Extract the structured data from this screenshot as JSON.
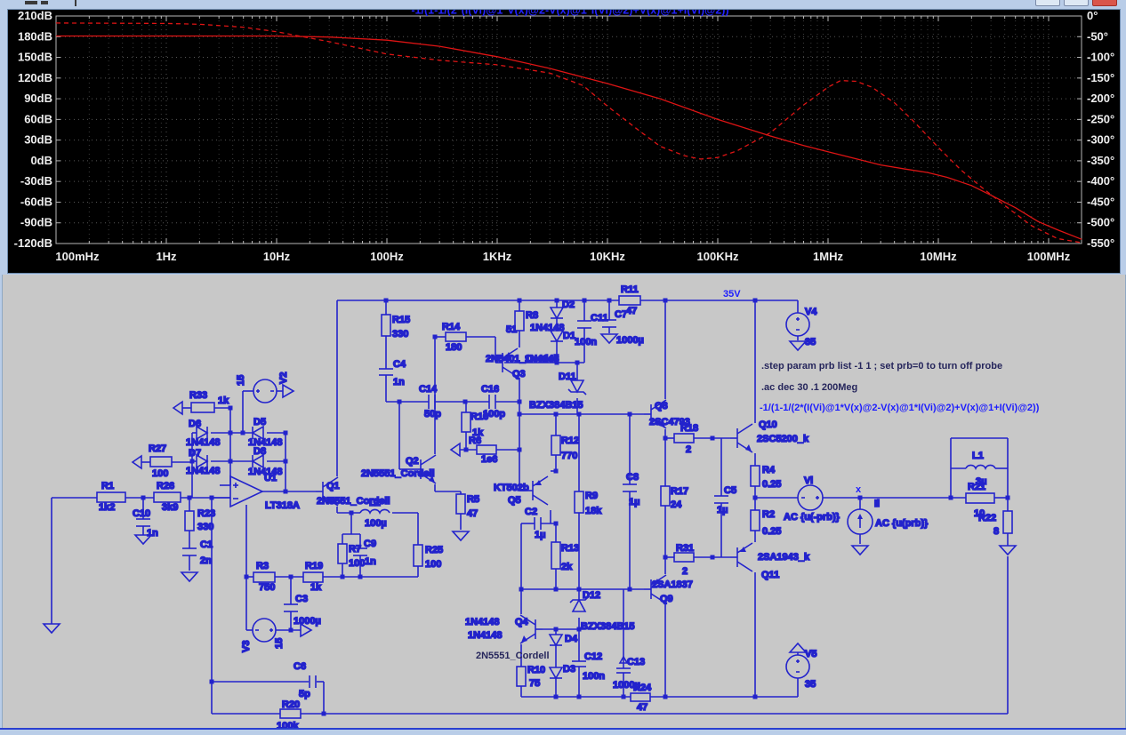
{
  "window": {
    "buttons": [
      {
        "id": "minimize",
        "label": ""
      },
      {
        "id": "maximize",
        "label": ""
      },
      {
        "id": "close",
        "label": ""
      }
    ]
  },
  "plot": {
    "title": "-1/(1-1/(2*(I(Vi)@1*V(x)@2-V(x)@1*I(Vi)@2)+V(x)@1+I(Vi)@2))",
    "left_ticks": [
      "210dB",
      "180dB",
      "150dB",
      "120dB",
      "90dB",
      "60dB",
      "30dB",
      "0dB",
      "-30dB",
      "-60dB",
      "-90dB",
      "-120dB"
    ],
    "right_ticks": [
      "0°",
      "-50°",
      "-100°",
      "-150°",
      "-200°",
      "-250°",
      "-300°",
      "-350°",
      "-400°",
      "-450°",
      "-500°",
      "-550°"
    ],
    "freq_ticks": [
      "100mHz",
      "1Hz",
      "10Hz",
      "100Hz",
      "1KHz",
      "10KHz",
      "100KHz",
      "1MHz",
      "10MHz",
      "100MHz"
    ],
    "curve_color": "#dd1414",
    "grid_color": "#565656",
    "background": "#000000"
  },
  "chart_data": {
    "type": "line",
    "title": "-1/(1-1/(2*(I(Vi)@1*V(x)@2-V(x)@1*I(Vi)@2)+V(x)@1+I(Vi)@2))",
    "x_axis": {
      "scale": "log",
      "range_hz": [
        0.1,
        200000000
      ],
      "tick_labels": [
        "100mHz",
        "1Hz",
        "10Hz",
        "100Hz",
        "1KHz",
        "10KHz",
        "100KHz",
        "1MHz",
        "10MHz",
        "100MHz"
      ]
    },
    "y_left": {
      "unit": "dB",
      "range": [
        -120,
        210
      ],
      "step": 30
    },
    "y_right": {
      "unit": "deg",
      "range": [
        -550,
        0
      ],
      "step": 50
    },
    "legend_position": "none",
    "grid": true,
    "series": [
      {
        "name": "magnitude_dB",
        "style": "solid",
        "color": "#dd1414",
        "axis": "left",
        "points": [
          [
            0.1,
            181
          ],
          [
            1,
            181
          ],
          [
            3,
            181
          ],
          [
            10,
            181
          ],
          [
            30,
            179.5
          ],
          [
            100,
            175
          ],
          [
            300,
            166
          ],
          [
            1000,
            151
          ],
          [
            3000,
            134
          ],
          [
            10000,
            112
          ],
          [
            30000,
            90
          ],
          [
            100000,
            60
          ],
          [
            300000,
            36
          ],
          [
            600000,
            22
          ],
          [
            1000000,
            13
          ],
          [
            2000000,
            1
          ],
          [
            3000000,
            -6
          ],
          [
            5000000,
            -12
          ],
          [
            8000000,
            -17
          ],
          [
            12000000,
            -24
          ],
          [
            20000000,
            -36
          ],
          [
            30000000,
            -50
          ],
          [
            50000000,
            -68
          ],
          [
            80000000,
            -88
          ],
          [
            120000000,
            -100
          ],
          [
            200000000,
            -114
          ]
        ]
      },
      {
        "name": "phase_deg",
        "style": "dashed",
        "color": "#dd1414",
        "axis": "right",
        "points": [
          [
            0.1,
            -17
          ],
          [
            1,
            -18
          ],
          [
            2,
            -20
          ],
          [
            5,
            -27
          ],
          [
            10,
            -38
          ],
          [
            30,
            -62
          ],
          [
            100,
            -92
          ],
          [
            300,
            -107
          ],
          [
            1000,
            -118
          ],
          [
            3000,
            -138
          ],
          [
            6000,
            -168
          ],
          [
            10000,
            -218
          ],
          [
            20000,
            -280
          ],
          [
            30000,
            -315
          ],
          [
            50000,
            -338
          ],
          [
            70000,
            -346
          ],
          [
            100000,
            -342
          ],
          [
            150000,
            -326
          ],
          [
            300000,
            -282
          ],
          [
            600000,
            -215
          ],
          [
            1000000,
            -172
          ],
          [
            1300000,
            -156
          ],
          [
            1800000,
            -158
          ],
          [
            2500000,
            -172
          ],
          [
            4000000,
            -210
          ],
          [
            6000000,
            -255
          ],
          [
            10000000,
            -318
          ],
          [
            16000000,
            -372
          ],
          [
            25000000,
            -415
          ],
          [
            40000000,
            -458
          ],
          [
            70000000,
            -507
          ],
          [
            120000000,
            -538
          ],
          [
            200000000,
            -548
          ]
        ]
      }
    ]
  },
  "schematic": {
    "directives": {
      "step": ".step param prb list -1 1 ; set prb=0 to turn off probe",
      "ac": ".ac dec 30 .1 200Meg",
      "probe_expr": "-1/(1-1/(2*(I(Vi)@1*V(x)@2-V(x)@1*I(Vi)@2)+V(x)@1+I(Vi)@2))"
    },
    "net_labels": {
      "vplus": "35V",
      "output_node": "x"
    },
    "components": {
      "R1": {
        "name": "R1",
        "value": "1k2"
      },
      "C10": {
        "name": "C10",
        "value": "1n"
      },
      "R26": {
        "name": "R26",
        "value": "3k9"
      },
      "R23": {
        "name": "R23",
        "value": "330"
      },
      "C1": {
        "name": "C1",
        "value": "2n"
      },
      "R27": {
        "name": "R27",
        "value": "100"
      },
      "R33": {
        "name": "R33",
        "value": "1k"
      },
      "D6": {
        "name": "D6",
        "value": "1N4148"
      },
      "D7": {
        "name": "D7",
        "value": "1N4148"
      },
      "D5": {
        "name": "D5",
        "value": "1N4148"
      },
      "D8": {
        "name": "D8",
        "value": "1N4148"
      },
      "V2": {
        "name": "V2",
        "value": "15"
      },
      "U1": {
        "name": "U1",
        "value": "LT318A"
      },
      "R3": {
        "name": "R3",
        "value": "750"
      },
      "R19": {
        "name": "R19",
        "value": "1k"
      },
      "C3": {
        "name": "C3",
        "value": "1000µ"
      },
      "V3": {
        "name": "V3",
        "value": "15"
      },
      "C6": {
        "name": "C6",
        "value": "5p"
      },
      "R20": {
        "name": "R20",
        "value": "100k"
      },
      "Q1": {
        "name": "Q1",
        "value": "2N5551_Cordell"
      },
      "L2": {
        "name": "L2",
        "value": "100µ"
      },
      "R7": {
        "name": "R7",
        "value": "100"
      },
      "C9": {
        "name": "C9",
        "value": "1n"
      },
      "R25": {
        "name": "R25",
        "value": "100"
      },
      "R15": {
        "name": "R15",
        "value": "330"
      },
      "C4": {
        "name": "C4",
        "value": "1n"
      },
      "R14": {
        "name": "R14",
        "value": "180"
      },
      "Q2": {
        "name": "Q2",
        "value": "2N5551_Cordell"
      },
      "R5": {
        "name": "R5",
        "value": "47"
      },
      "C14": {
        "name": "C14",
        "value": "50p"
      },
      "C16": {
        "name": "C16",
        "value": "100p"
      },
      "R16": {
        "name": "R16",
        "value": "1k"
      },
      "R6": {
        "name": "R6",
        "value": "1e6"
      },
      "R8": {
        "name": "R8",
        "value": "51"
      },
      "D2": {
        "name": "D2",
        "value": "1N4148"
      },
      "D1": {
        "name": "D1",
        "value": "1N4148"
      },
      "Q3": {
        "name": "Q3",
        "value": "2N5401_Cordell"
      },
      "C11": {
        "name": "C11",
        "value": "100n"
      },
      "C7": {
        "name": "C7",
        "value": "1000µ"
      },
      "R11": {
        "name": "R11",
        "value": "47"
      },
      "V4": {
        "name": "V4",
        "value": "35"
      },
      "D11": {
        "name": "D11",
        "value": "BZX384B15"
      },
      "R12": {
        "name": "R12",
        "value": "770"
      },
      "R9": {
        "name": "R9",
        "value": "18k"
      },
      "C8": {
        "name": "C8",
        "value": "1µ"
      },
      "Q5": {
        "name": "Q5",
        "value": "KT502b"
      },
      "C2": {
        "name": "C2",
        "value": "1µ"
      },
      "R13": {
        "name": "R13",
        "value": "2k"
      },
      "D12": {
        "name": "D12",
        "value": "BZX384B15"
      },
      "Q4": {
        "name": "Q4",
        "value": "2N5551_Cordell"
      },
      "D4": {
        "name": "D4",
        "value": "1N4148"
      },
      "D3": {
        "name": "D3",
        "value": "1N4148"
      },
      "R10": {
        "name": "R10",
        "value": "75"
      },
      "C12": {
        "name": "C12",
        "value": "100n"
      },
      "C13": {
        "name": "C13",
        "value": "1000µ"
      },
      "R24": {
        "name": "R24",
        "value": "47"
      },
      "Q8": {
        "name": "Q8",
        "value": "2SC4793"
      },
      "R18": {
        "name": "R18",
        "value": "2"
      },
      "R17": {
        "name": "R17",
        "value": "24"
      },
      "C5": {
        "name": "C5",
        "value": "1µ"
      },
      "Q9": {
        "name": "Q9",
        "value": "2SA1837"
      },
      "R31": {
        "name": "R31",
        "value": "2"
      },
      "Q10": {
        "name": "Q10",
        "value": "2SC5200_k"
      },
      "R4": {
        "name": "R4",
        "value": "0.25"
      },
      "R2": {
        "name": "R2",
        "value": "0.25"
      },
      "Q11": {
        "name": "Q11",
        "value": "2SA1943_k"
      },
      "V5": {
        "name": "V5",
        "value": "35"
      },
      "Vi": {
        "name": "Vi",
        "value": "AC {u(-prb)}"
      },
      "Ii": {
        "name": "Ii",
        "value": "AC {u(prb)}"
      },
      "L1": {
        "name": "L1",
        "value": "3µ"
      },
      "R21": {
        "name": "R21",
        "value": "10"
      },
      "R22": {
        "name": "R22",
        "value": "8"
      }
    }
  }
}
